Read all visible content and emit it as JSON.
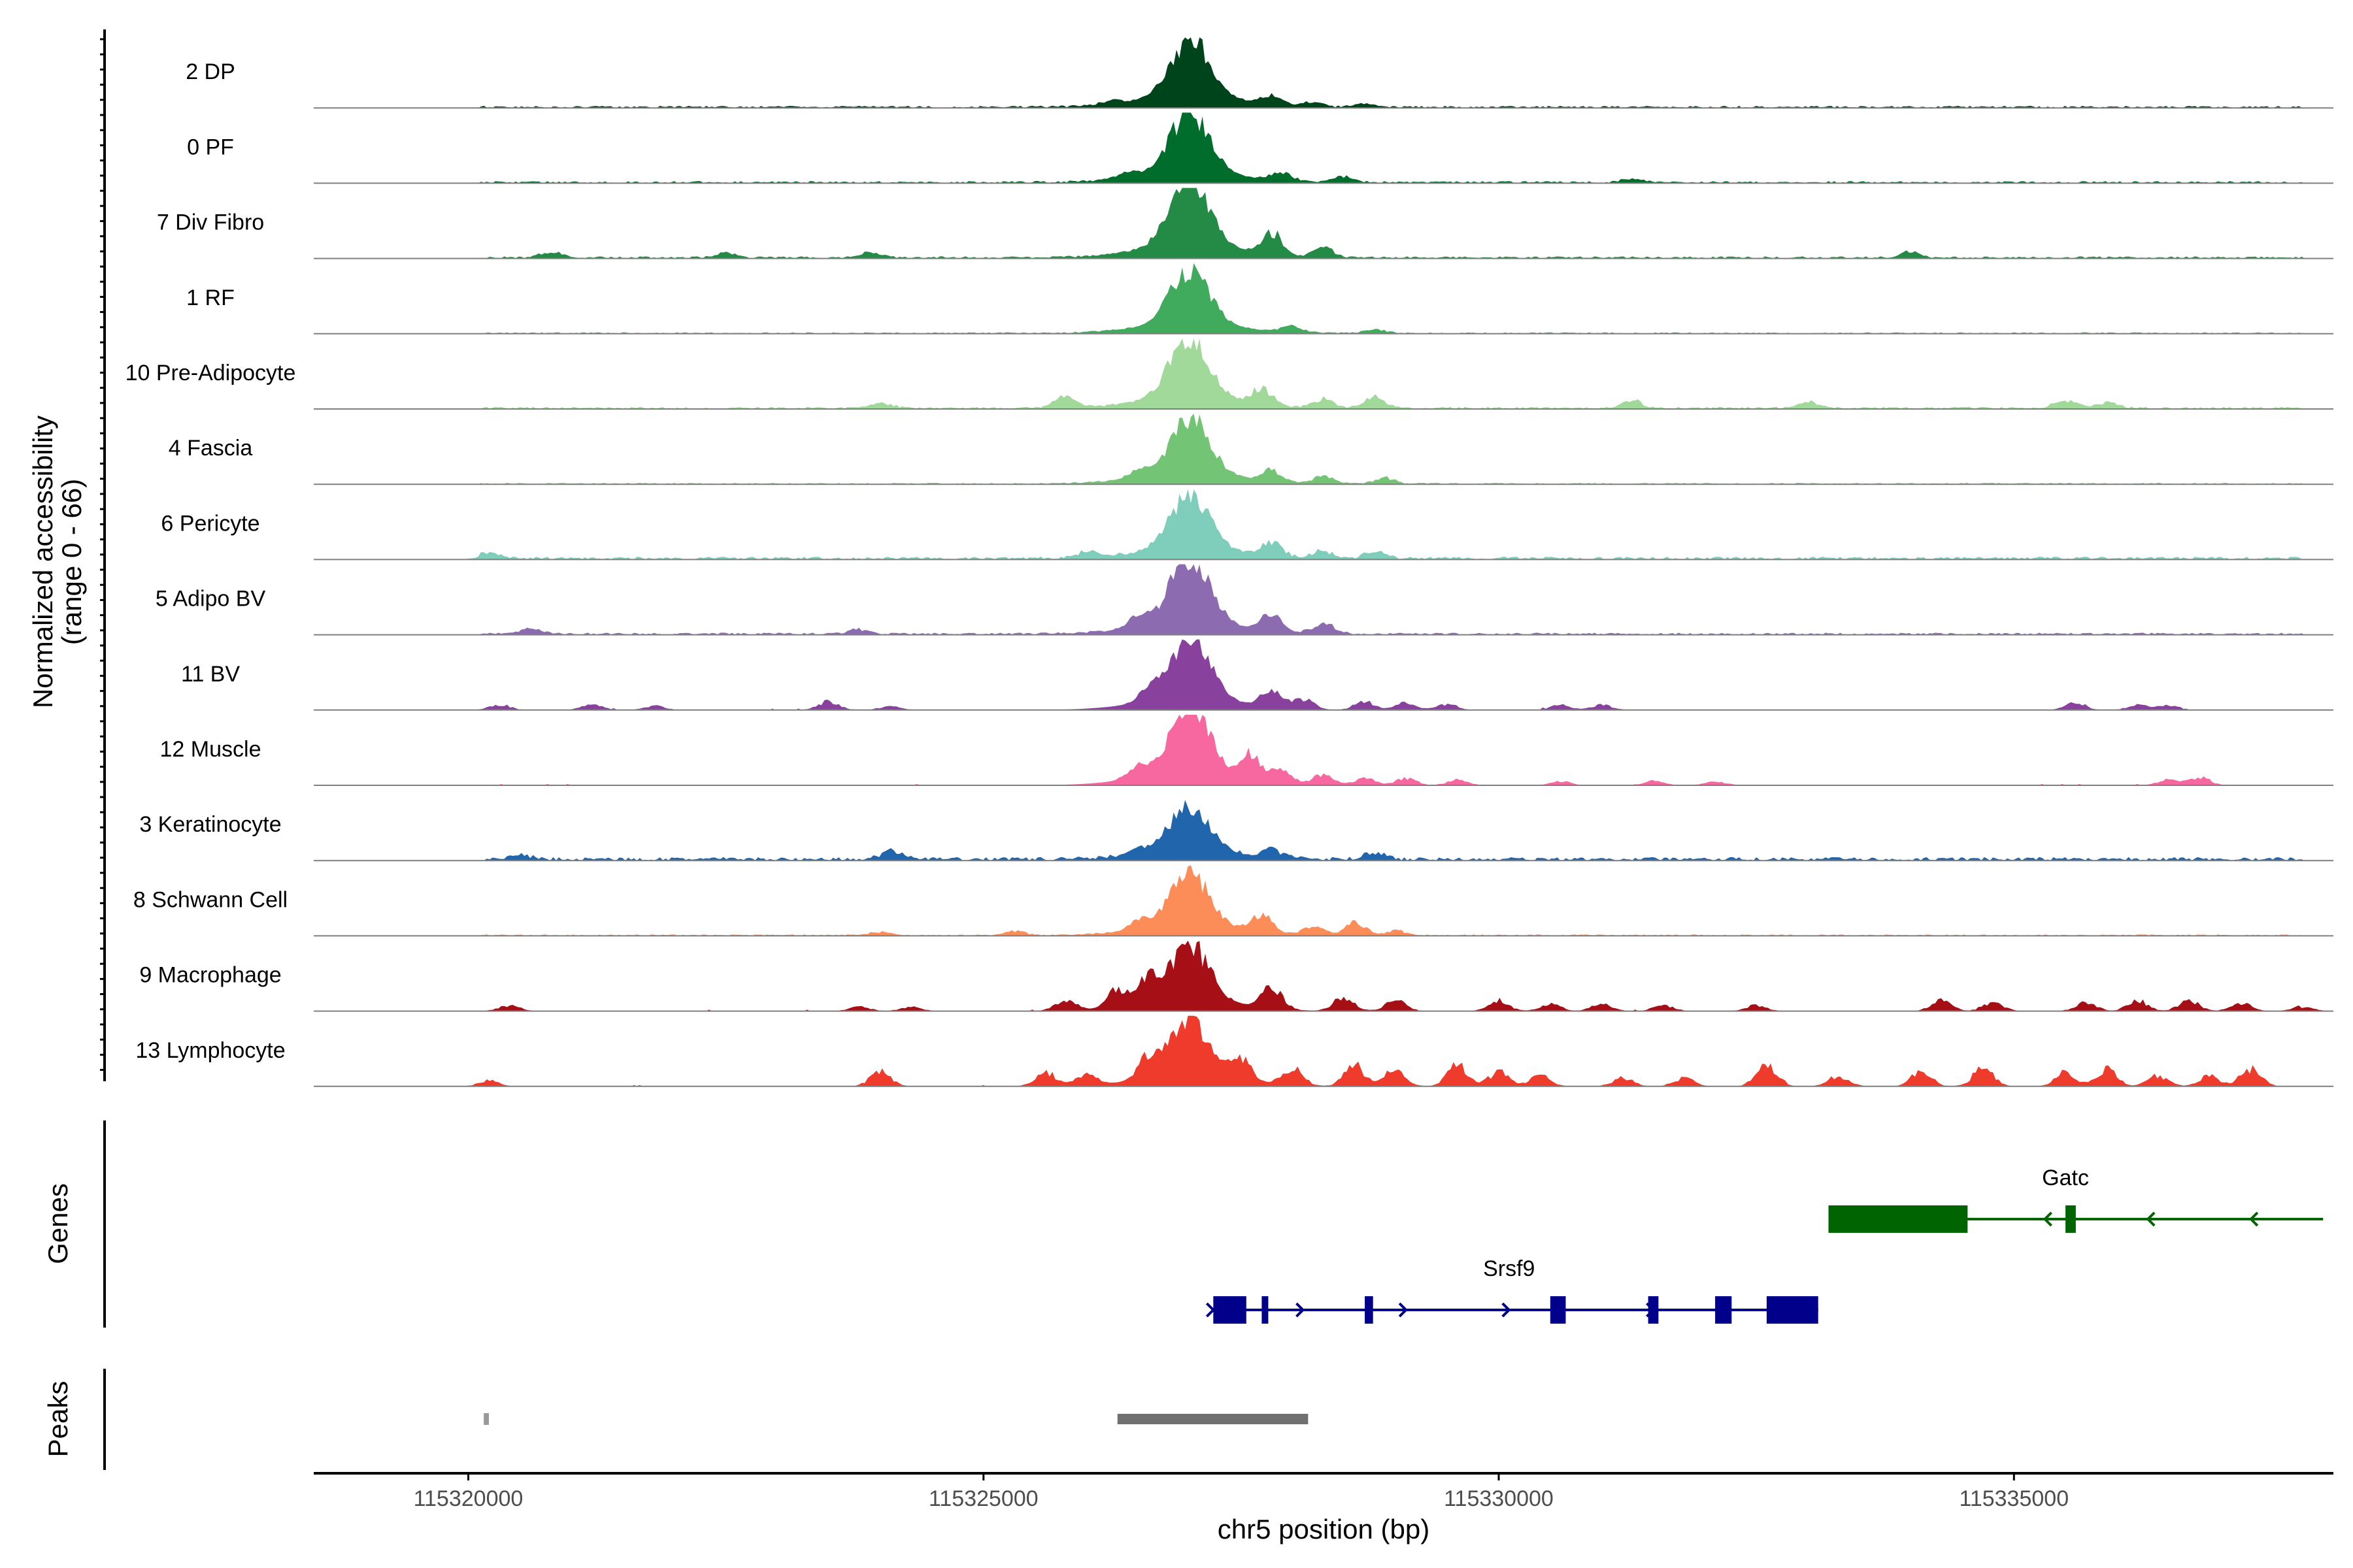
{
  "chart_data": {
    "type": "area",
    "title": "",
    "ylabel_line1": "Normalized accessibility",
    "ylabel_line2": "(range 0 - 66)",
    "y_range": [
      0,
      66
    ],
    "xlabel": "chr5 position (bp)",
    "x_range": [
      115318500,
      115338100
    ],
    "x_ticks": [
      115320000,
      115325000,
      115330000,
      115335000
    ],
    "x_tick_labels": [
      "115320000",
      "115325000",
      "115330000",
      "115335000"
    ],
    "genes_label": "Genes",
    "peaks_label": "Peaks",
    "tracks": [
      {
        "name": "2 DP",
        "color": "#00441b",
        "peak": 0.83,
        "bg": 0.03,
        "sparse": false,
        "bumps": [
          [
            115326250,
            0.05
          ],
          [
            115327800,
            0.12
          ],
          [
            115328200,
            0.07
          ],
          [
            115328700,
            0.05
          ]
        ]
      },
      {
        "name": "0 PF",
        "color": "#006d2c",
        "peak": 0.83,
        "bg": 0.03,
        "sparse": false,
        "bumps": [
          [
            115326400,
            0.07
          ],
          [
            115327900,
            0.12
          ],
          [
            115328500,
            0.08
          ],
          [
            115331300,
            0.05
          ]
        ]
      },
      {
        "name": "7 Div Fibro",
        "color": "#238b45",
        "peak": 0.98,
        "bg": 0.03,
        "sparse": false,
        "bumps": [
          [
            115320800,
            0.08
          ],
          [
            115322500,
            0.07
          ],
          [
            115323900,
            0.07
          ],
          [
            115327800,
            0.3
          ],
          [
            115328300,
            0.15
          ],
          [
            115334000,
            0.08
          ]
        ]
      },
      {
        "name": "1 RF",
        "color": "#41ab5d",
        "peak": 0.75,
        "bg": 0.02,
        "sparse": false,
        "bumps": [
          [
            115328000,
            0.08
          ],
          [
            115328800,
            0.05
          ]
        ]
      },
      {
        "name": "10 Pre-Adipocyte",
        "color": "#a1d99b",
        "peak": 0.85,
        "bg": 0.03,
        "sparse": false,
        "bumps": [
          [
            115324000,
            0.08
          ],
          [
            115325800,
            0.15
          ],
          [
            115327700,
            0.22
          ],
          [
            115328300,
            0.12
          ],
          [
            115328800,
            0.15
          ],
          [
            115331300,
            0.1
          ],
          [
            115333000,
            0.1
          ],
          [
            115335500,
            0.12
          ],
          [
            115335900,
            0.08
          ]
        ]
      },
      {
        "name": "4 Fascia",
        "color": "#74c476",
        "peak": 0.8,
        "bg": 0.02,
        "sparse": false,
        "bumps": [
          [
            115326500,
            0.1
          ],
          [
            115327800,
            0.15
          ],
          [
            115328300,
            0.1
          ],
          [
            115328900,
            0.08
          ]
        ]
      },
      {
        "name": "6 Pericyte",
        "color": "#7fcdbb",
        "peak": 0.8,
        "bg": 0.04,
        "sparse": false,
        "bumps": [
          [
            115320200,
            0.08
          ],
          [
            115326000,
            0.08
          ],
          [
            115327800,
            0.2
          ],
          [
            115328300,
            0.1
          ],
          [
            115328800,
            0.1
          ]
        ]
      },
      {
        "name": "5 Adipo BV",
        "color": "#8c6bb1",
        "peak": 0.95,
        "bg": 0.03,
        "sparse": false,
        "bumps": [
          [
            115320600,
            0.08
          ],
          [
            115323800,
            0.06
          ],
          [
            115326500,
            0.15
          ],
          [
            115327800,
            0.25
          ],
          [
            115328300,
            0.15
          ]
        ]
      },
      {
        "name": "11 BV",
        "color": "#88419d",
        "peak": 0.9,
        "bg": 0.0,
        "sparse": true,
        "bumps": [
          [
            115320300,
            0.08
          ],
          [
            115321200,
            0.08
          ],
          [
            115321800,
            0.06
          ],
          [
            115323500,
            0.12
          ],
          [
            115324100,
            0.06
          ],
          [
            115326600,
            0.15
          ],
          [
            115327800,
            0.25
          ],
          [
            115328100,
            0.15
          ],
          [
            115328700,
            0.12
          ],
          [
            115329100,
            0.1
          ],
          [
            115329500,
            0.08
          ],
          [
            115330600,
            0.07
          ],
          [
            115331000,
            0.07
          ],
          [
            115335600,
            0.1
          ],
          [
            115336200,
            0.07
          ],
          [
            115336500,
            0.07
          ]
        ]
      },
      {
        "name": "12 Muscle",
        "color": "#f768a1",
        "peak": 1.0,
        "bg": 0.0,
        "sparse": true,
        "bumps": [
          [
            115326500,
            0.15
          ],
          [
            115327600,
            0.35
          ],
          [
            115327900,
            0.18
          ],
          [
            115328300,
            0.15
          ],
          [
            115328700,
            0.1
          ],
          [
            115329100,
            0.1
          ],
          [
            115329600,
            0.08
          ],
          [
            115330600,
            0.06
          ],
          [
            115331500,
            0.06
          ],
          [
            115332100,
            0.06
          ],
          [
            115336500,
            0.08
          ],
          [
            115336800,
            0.12
          ]
        ]
      },
      {
        "name": "3 Keratinocyte",
        "color": "#2166ac",
        "peak": 0.65,
        "bg": 0.05,
        "sparse": false,
        "bumps": [
          [
            115320500,
            0.06
          ],
          [
            115324100,
            0.12
          ],
          [
            115326500,
            0.08
          ],
          [
            115327800,
            0.1
          ],
          [
            115328800,
            0.1
          ]
        ]
      },
      {
        "name": "8 Schwann Cell",
        "color": "#fc8d59",
        "peak": 0.75,
        "bg": 0.02,
        "sparse": false,
        "bumps": [
          [
            115324000,
            0.05
          ],
          [
            115325300,
            0.06
          ],
          [
            115326500,
            0.12
          ],
          [
            115327700,
            0.25
          ],
          [
            115328200,
            0.12
          ],
          [
            115328600,
            0.18
          ],
          [
            115329000,
            0.06
          ]
        ]
      },
      {
        "name": "9 Macrophage",
        "color": "#a50f15",
        "peak": 0.8,
        "bg": 0.0,
        "sparse": true,
        "bumps": [
          [
            115320400,
            0.08
          ],
          [
            115323800,
            0.06
          ],
          [
            115324300,
            0.06
          ],
          [
            115325800,
            0.15
          ],
          [
            115326300,
            0.25
          ],
          [
            115326600,
            0.35
          ],
          [
            115327800,
            0.3
          ],
          [
            115328500,
            0.2
          ],
          [
            115329000,
            0.15
          ],
          [
            115330000,
            0.15
          ],
          [
            115330500,
            0.1
          ],
          [
            115331000,
            0.1
          ],
          [
            115331600,
            0.08
          ],
          [
            115332500,
            0.08
          ],
          [
            115334300,
            0.15
          ],
          [
            115334800,
            0.12
          ],
          [
            115335700,
            0.12
          ],
          [
            115336200,
            0.15
          ],
          [
            115336700,
            0.15
          ],
          [
            115337200,
            0.12
          ],
          [
            115337800,
            0.06
          ]
        ]
      },
      {
        "name": "13 Lymphocyte",
        "color": "#ef3b2c",
        "peak": 0.8,
        "bg": 0.0,
        "sparse": true,
        "bumps": [
          [
            115320200,
            0.08
          ],
          [
            115324000,
            0.2
          ],
          [
            115325600,
            0.2
          ],
          [
            115326000,
            0.15
          ],
          [
            115326600,
            0.3
          ],
          [
            115327500,
            0.3
          ],
          [
            115328000,
            0.25
          ],
          [
            115328600,
            0.3
          ],
          [
            115329000,
            0.25
          ],
          [
            115329600,
            0.3
          ],
          [
            115330000,
            0.2
          ],
          [
            115330400,
            0.15
          ],
          [
            115331200,
            0.12
          ],
          [
            115331800,
            0.12
          ],
          [
            115332600,
            0.3
          ],
          [
            115333300,
            0.15
          ],
          [
            115334100,
            0.2
          ],
          [
            115334700,
            0.25
          ],
          [
            115335500,
            0.2
          ],
          [
            115335900,
            0.25
          ],
          [
            115336400,
            0.15
          ],
          [
            115336900,
            0.15
          ],
          [
            115337300,
            0.25
          ]
        ]
      }
    ],
    "main_peak_center": 115327000,
    "genes": [
      {
        "name": "Srsf9",
        "strand": "+",
        "color": "#00008b",
        "start": 115327230,
        "end": 115333100,
        "label_pos": 115330100,
        "exons": [
          [
            115327230,
            115327550
          ],
          [
            115327700,
            115327740
          ],
          [
            115328700,
            115328780
          ],
          [
            115330500,
            115330650
          ],
          [
            115331450,
            115331550
          ],
          [
            115332100,
            115332260
          ],
          [
            115332600,
            115333100
          ]
        ],
        "arrows": [
          115327230,
          115328100,
          115329100,
          115330100,
          115331500
        ]
      },
      {
        "name": "Gatc",
        "strand": "-",
        "color": "#006400",
        "start": 115333200,
        "end": 115338000,
        "label_pos": 115335500,
        "exons": [
          [
            115333200,
            115334550
          ],
          [
            115335500,
            115335600
          ]
        ],
        "arrows": [
          115335300,
          115336300,
          115337300
        ]
      }
    ],
    "peaks": [
      {
        "start": 115320150,
        "end": 115320200,
        "color": "#999999"
      },
      {
        "start": 115326300,
        "end": 115328150,
        "color": "#707070"
      }
    ]
  }
}
